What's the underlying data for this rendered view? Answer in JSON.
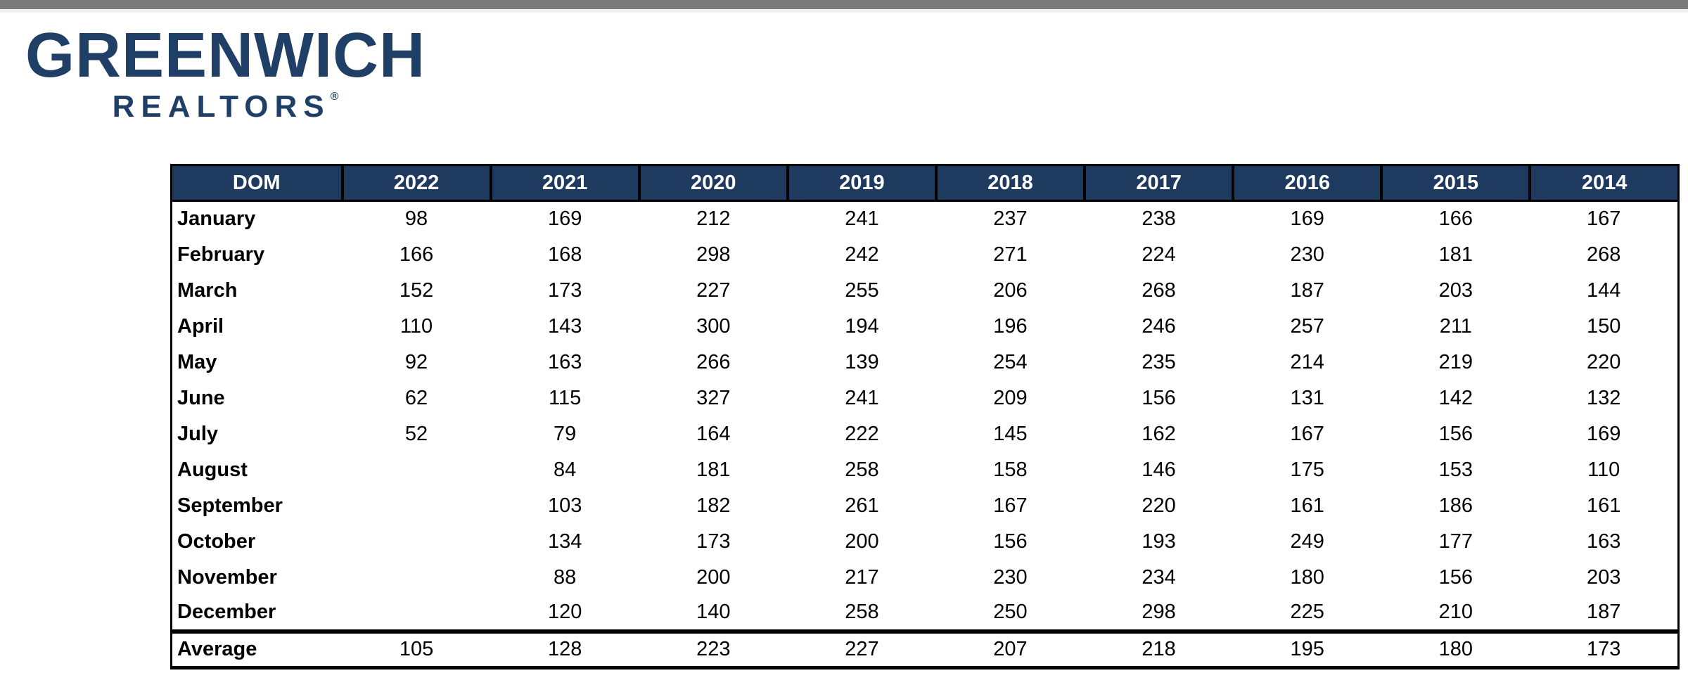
{
  "page": {
    "top_bar_color": "#7a7a7a",
    "top_bar_shadow_color": "#f1f1f1",
    "background_color": "#ffffff"
  },
  "logo": {
    "line1": "GREENWICH",
    "line2": "REALTORS",
    "registered_mark": "®",
    "color": "#1f3f66"
  },
  "colors": {
    "table_header_bg": "#1f3a5f",
    "table_header_text": "#ffffff",
    "table_border": "#000000",
    "table_text": "#000000"
  },
  "table": {
    "columns": [
      "DOM",
      "2022",
      "2021",
      "2020",
      "2019",
      "2018",
      "2017",
      "2016",
      "2015",
      "2014"
    ],
    "rows": [
      {
        "label": "January",
        "values": [
          "98",
          "169",
          "212",
          "241",
          "237",
          "238",
          "169",
          "166",
          "167"
        ]
      },
      {
        "label": "February",
        "values": [
          "166",
          "168",
          "298",
          "242",
          "271",
          "224",
          "230",
          "181",
          "268"
        ]
      },
      {
        "label": "March",
        "values": [
          "152",
          "173",
          "227",
          "255",
          "206",
          "268",
          "187",
          "203",
          "144"
        ]
      },
      {
        "label": "April",
        "values": [
          "110",
          "143",
          "300",
          "194",
          "196",
          "246",
          "257",
          "211",
          "150"
        ]
      },
      {
        "label": "May",
        "values": [
          "92",
          "163",
          "266",
          "139",
          "254",
          "235",
          "214",
          "219",
          "220"
        ]
      },
      {
        "label": "June",
        "values": [
          "62",
          "115",
          "327",
          "241",
          "209",
          "156",
          "131",
          "142",
          "132"
        ]
      },
      {
        "label": "July",
        "values": [
          "52",
          "79",
          "164",
          "222",
          "145",
          "162",
          "167",
          "156",
          "169"
        ]
      },
      {
        "label": "August",
        "values": [
          "",
          "84",
          "181",
          "258",
          "158",
          "146",
          "175",
          "153",
          "110"
        ]
      },
      {
        "label": "September",
        "values": [
          "",
          "103",
          "182",
          "261",
          "167",
          "220",
          "161",
          "186",
          "161"
        ]
      },
      {
        "label": "October",
        "values": [
          "",
          "134",
          "173",
          "200",
          "156",
          "193",
          "249",
          "177",
          "163"
        ]
      },
      {
        "label": "November",
        "values": [
          "",
          "88",
          "200",
          "217",
          "230",
          "234",
          "180",
          "156",
          "203"
        ]
      },
      {
        "label": "December",
        "values": [
          "",
          "120",
          "140",
          "258",
          "250",
          "298",
          "225",
          "210",
          "187"
        ]
      }
    ],
    "footer": {
      "label": "Average",
      "values": [
        "105",
        "128",
        "223",
        "227",
        "207",
        "218",
        "195",
        "180",
        "173"
      ]
    }
  }
}
